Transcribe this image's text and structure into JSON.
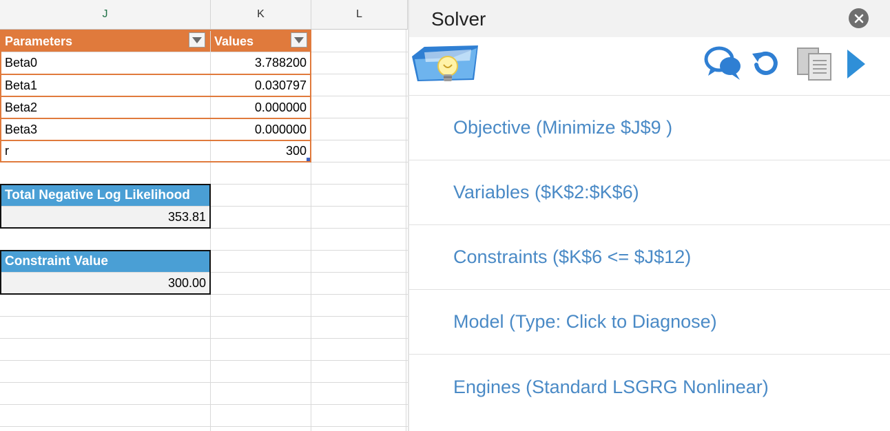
{
  "columns": [
    "J",
    "K",
    "L"
  ],
  "params_table": {
    "header_params": "Parameters",
    "header_values": "Values",
    "rows": [
      {
        "name": "Beta0",
        "value": "3.788200"
      },
      {
        "name": "Beta1",
        "value": "0.030797"
      },
      {
        "name": "Beta2",
        "value": "0.000000"
      },
      {
        "name": "Beta3",
        "value": "0.000000"
      },
      {
        "name": "r",
        "value": "300"
      }
    ]
  },
  "nll_box": {
    "label": "Total Negative Log Likelihood",
    "value": "353.81"
  },
  "constraint_box": {
    "label": "Constraint Value",
    "value": "300.00"
  },
  "solver": {
    "title": "Solver",
    "icons": [
      "lightbulb-folder-icon",
      "chat-bubbles-icon",
      "reset-icon",
      "copy-icon",
      "play-icon",
      "close-icon"
    ],
    "sections": [
      "Objective (Minimize $J$9 )",
      "Variables ($K$2:$K$6)",
      "Constraints ($K$6 <= $J$12)",
      "Model (Type: Click to Diagnose)",
      "Engines (Standard LSGRG Nonlinear)"
    ]
  },
  "colors": {
    "orange_header": "#e07a3c",
    "blue_header": "#4a9fd5",
    "link_blue": "#4a8ac6",
    "accent_play": "#2f8fd8"
  }
}
